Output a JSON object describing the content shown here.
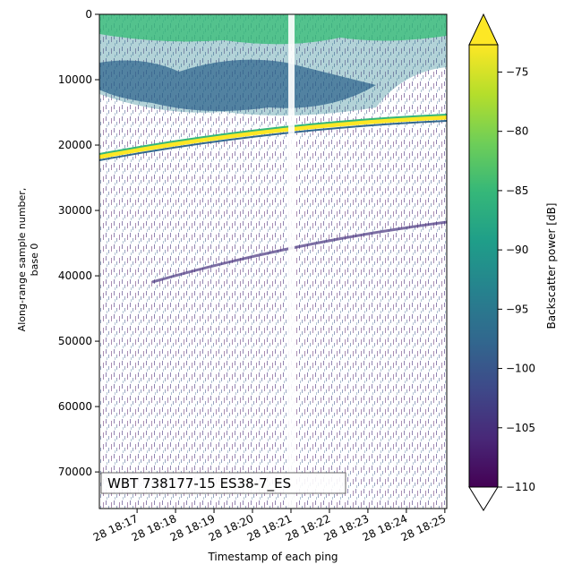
{
  "chart_data": {
    "type": "echogram",
    "ylabel": "Along-range sample number,",
    "ylabel2": "base 0",
    "xlabel": "Timestamp of each ping",
    "annotation": "WBT 738177-15 ES38-7_ES",
    "ylim": [
      75600,
      0
    ],
    "yticks": [
      0,
      10000,
      20000,
      30000,
      40000,
      50000,
      60000,
      70000
    ],
    "xlim": [
      1096.02,
      1105.05
    ],
    "xticks": [
      {
        "value": 1097,
        "label": "28 18:17"
      },
      {
        "value": 1098,
        "label": "28 18:18"
      },
      {
        "value": 1099,
        "label": "28 18:19"
      },
      {
        "value": 1100,
        "label": "28 18:20"
      },
      {
        "value": 1101,
        "label": "28 18:21"
      },
      {
        "value": 1102,
        "label": "28 18:22"
      },
      {
        "value": 1103,
        "label": "28 18:23"
      },
      {
        "value": 1104,
        "label": "28 18:24"
      },
      {
        "value": 1105,
        "label": "28 18:25"
      }
    ],
    "colorbar": {
      "label": "Backscatter power [dB]",
      "colormap": "viridis",
      "extend": "both",
      "clim": [
        -110,
        -72.7
      ],
      "ticks": [
        {
          "value": -75,
          "label": "−75"
        },
        {
          "value": -80,
          "label": "−80"
        },
        {
          "value": -85,
          "label": "−85"
        },
        {
          "value": -90,
          "label": "−90"
        },
        {
          "value": -95,
          "label": "−95"
        },
        {
          "value": -100,
          "label": "−100"
        },
        {
          "value": -105,
          "label": "−105"
        },
        {
          "value": -110,
          "label": "−110"
        }
      ]
    }
  }
}
